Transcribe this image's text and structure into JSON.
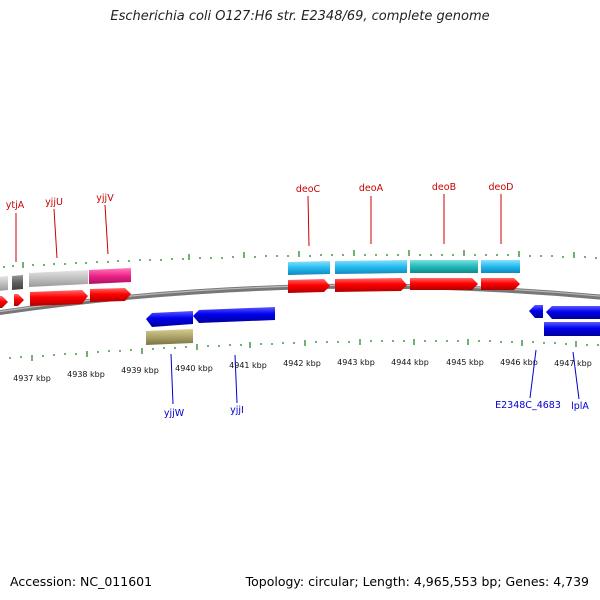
{
  "title": "Escherichia coli O127:H6 str. E2348/69, complete genome",
  "footer": {
    "accession": "Accession: NC_011601",
    "summary": "Topology: circular; Length: 4,965,553 bp; Genes: 4,739"
  },
  "kbp_ticks": [
    {
      "label": "4937 kbp"
    },
    {
      "label": "4938 kbp"
    },
    {
      "label": "4939 kbp"
    },
    {
      "label": "4940 kbp"
    },
    {
      "label": "4941 kbp"
    },
    {
      "label": "4942 kbp"
    },
    {
      "label": "4943 kbp"
    },
    {
      "label": "4944 kbp"
    },
    {
      "label": "4945 kbp"
    },
    {
      "label": "4946 kbp"
    },
    {
      "label": "4947 kbp"
    }
  ],
  "genes_top": [
    {
      "name": "ytjA"
    },
    {
      "name": "yjjU"
    },
    {
      "name": "yjjV"
    },
    {
      "name": "deoC"
    },
    {
      "name": "deoA"
    },
    {
      "name": "deoB"
    },
    {
      "name": "deoD"
    }
  ],
  "genes_bottom": [
    {
      "name": "yjjW"
    },
    {
      "name": "yjjI"
    },
    {
      "name": "E2348C_4683"
    },
    {
      "name": "lplA"
    }
  ],
  "colors": {
    "forward_cds": "#ff0000",
    "reverse_cds": "#0000ee",
    "gene_grey": "#c0c0c0",
    "gene_dark": "#606060",
    "magenta": "#ee2288",
    "cyan": "#22bbee",
    "teal": "#22bbbb",
    "olive": "#aaa266",
    "tick_green": "#228822",
    "backbone": "#808080"
  }
}
